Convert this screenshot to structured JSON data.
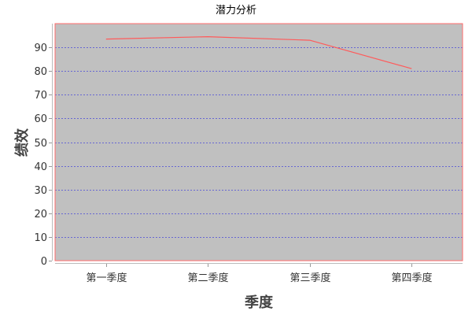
{
  "chart_data": {
    "type": "line",
    "title": "潜力分析",
    "xlabel": "季度",
    "ylabel": "绩效",
    "categories": [
      "第一季度",
      "第二季度",
      "第三季度",
      "第四季度"
    ],
    "series": [
      {
        "values": [
          93.5,
          94.5,
          93,
          81
        ]
      }
    ],
    "ylim": [
      0,
      100
    ],
    "yticks": [
      "0",
      "10",
      "20",
      "30",
      "40",
      "50",
      "60",
      "70",
      "80",
      "90"
    ],
    "grid": true,
    "legend": "none",
    "colors": {
      "line": "#ff5a5a",
      "plot_background": "#c0c0c0",
      "plot_border": "#ff6b6b",
      "gridline": "#4a4ad8"
    }
  }
}
